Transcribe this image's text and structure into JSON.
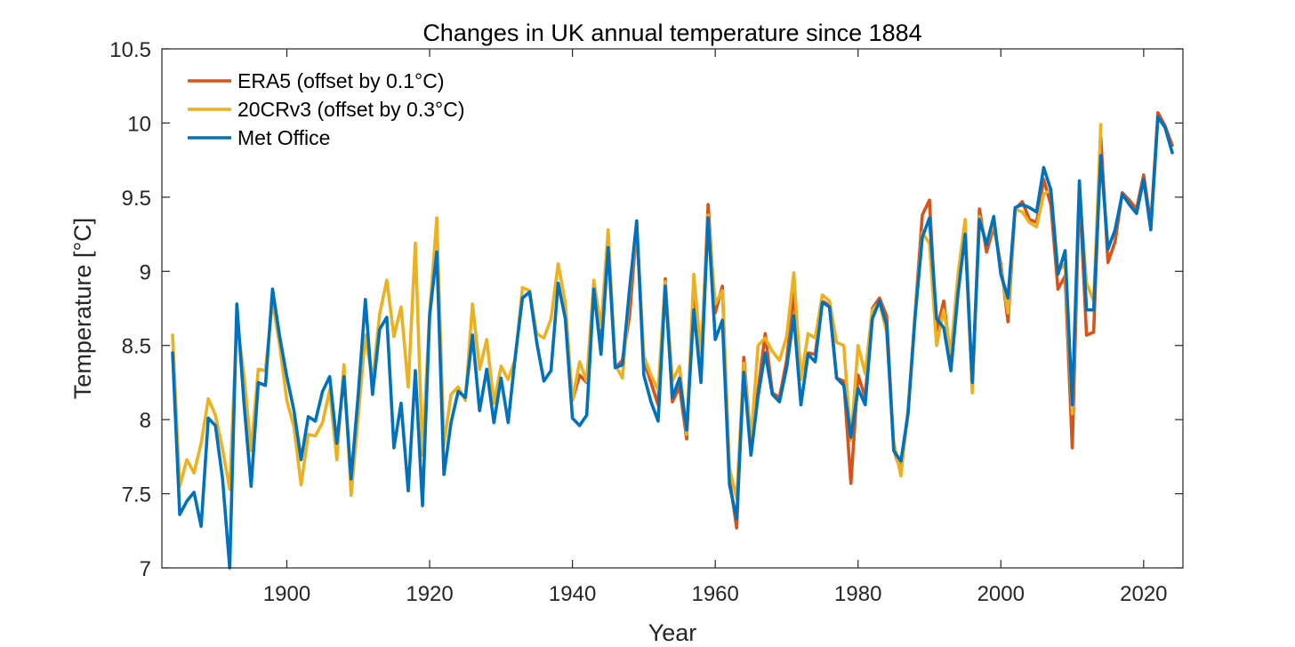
{
  "chart_data": {
    "type": "line",
    "title": "Changes in UK annual temperature since 1884",
    "xlabel": "Year",
    "ylabel": "Temperature [°C]",
    "xlim": [
      1882.5,
      2025.5
    ],
    "ylim": [
      7,
      10.5
    ],
    "xticks": [
      1900,
      1920,
      1940,
      1960,
      1980,
      2000,
      2020
    ],
    "yticks": [
      7,
      7.5,
      8,
      8.5,
      9,
      9.5,
      10,
      10.5
    ],
    "ytick_labels": [
      "7",
      "7.5",
      "8",
      "8.5",
      "9",
      "9.5",
      "10",
      "10.5"
    ],
    "grid": false,
    "legend_position": "top-left",
    "series": [
      {
        "name": "ERA5 (offset by 0.1°C)",
        "color": "#D95319",
        "x": [
          1940,
          1941,
          1942,
          1943,
          1944,
          1945,
          1946,
          1947,
          1948,
          1949,
          1950,
          1951,
          1952,
          1953,
          1954,
          1955,
          1956,
          1957,
          1958,
          1959,
          1960,
          1961,
          1962,
          1963,
          1964,
          1965,
          1966,
          1967,
          1968,
          1969,
          1970,
          1971,
          1972,
          1973,
          1974,
          1975,
          1976,
          1977,
          1978,
          1979,
          1980,
          1981,
          1982,
          1983,
          1984,
          1985,
          1986,
          1987,
          1988,
          1989,
          1990,
          1991,
          1992,
          1993,
          1994,
          1995,
          1996,
          1997,
          1998,
          1999,
          2000,
          2001,
          2002,
          2003,
          2004,
          2005,
          2006,
          2007,
          2008,
          2009,
          2010,
          2011,
          2012,
          2013,
          2014,
          2015,
          2016,
          2017,
          2018,
          2019,
          2020,
          2021,
          2022,
          2023,
          2024
        ],
        "y": [
          8.13,
          8.3,
          8.25,
          8.9,
          8.55,
          9.2,
          8.35,
          8.4,
          8.7,
          9.3,
          8.4,
          8.25,
          8.1,
          8.95,
          8.12,
          8.22,
          7.87,
          8.9,
          8.35,
          9.45,
          8.72,
          8.9,
          7.6,
          7.27,
          8.42,
          7.85,
          8.2,
          8.58,
          8.18,
          8.15,
          8.4,
          8.85,
          8.3,
          8.45,
          8.44,
          8.8,
          8.77,
          8.28,
          8.26,
          7.57,
          8.3,
          8.15,
          8.75,
          8.82,
          8.7,
          7.8,
          7.65,
          8.05,
          8.72,
          9.38,
          9.48,
          8.6,
          8.8,
          8.4,
          8.95,
          9.25,
          8.2,
          9.42,
          9.13,
          9.3,
          9.05,
          8.66,
          9.42,
          9.47,
          9.35,
          9.33,
          9.62,
          9.45,
          8.88,
          8.97,
          7.81,
          9.55,
          8.57,
          8.59,
          9.9,
          9.06,
          9.2,
          9.53,
          9.48,
          9.42,
          9.65,
          9.32,
          10.07,
          9.98,
          9.85
        ]
      },
      {
        "name": "20CRv3 (offset by 0.3°C)",
        "color": "#EDB120",
        "x": [
          1884,
          1885,
          1886,
          1887,
          1888,
          1889,
          1890,
          1891,
          1892,
          1893,
          1894,
          1895,
          1896,
          1897,
          1898,
          1899,
          1900,
          1901,
          1902,
          1903,
          1904,
          1905,
          1906,
          1907,
          1908,
          1909,
          1910,
          1911,
          1912,
          1913,
          1914,
          1915,
          1916,
          1917,
          1918,
          1919,
          1920,
          1921,
          1922,
          1923,
          1924,
          1925,
          1926,
          1927,
          1928,
          1929,
          1930,
          1931,
          1932,
          1933,
          1934,
          1935,
          1936,
          1937,
          1938,
          1939,
          1940,
          1941,
          1942,
          1943,
          1944,
          1945,
          1946,
          1947,
          1948,
          1949,
          1950,
          1951,
          1952,
          1953,
          1954,
          1955,
          1956,
          1957,
          1958,
          1959,
          1960,
          1961,
          1962,
          1963,
          1964,
          1965,
          1966,
          1967,
          1968,
          1969,
          1970,
          1971,
          1972,
          1973,
          1974,
          1975,
          1976,
          1977,
          1978,
          1979,
          1980,
          1981,
          1982,
          1983,
          1984,
          1985,
          1986,
          1987,
          1988,
          1989,
          1990,
          1991,
          1992,
          1993,
          1994,
          1995,
          1996,
          1997,
          1998,
          1999,
          2000,
          2001,
          2002,
          2003,
          2004,
          2005,
          2006,
          2007,
          2008,
          2009,
          2010,
          2011,
          2012,
          2013,
          2014
        ],
        "y": [
          8.57,
          7.55,
          7.73,
          7.64,
          7.84,
          8.14,
          8.03,
          7.8,
          7.53,
          8.67,
          8.3,
          7.79,
          8.34,
          8.33,
          8.8,
          8.5,
          8.13,
          7.95,
          7.56,
          7.9,
          7.89,
          7.98,
          8.2,
          7.73,
          8.37,
          7.49,
          8.02,
          8.57,
          8.26,
          8.71,
          8.94,
          8.56,
          8.76,
          8.22,
          9.19,
          7.76,
          8.72,
          9.36,
          7.83,
          8.17,
          8.22,
          8.13,
          8.78,
          8.34,
          8.54,
          8.11,
          8.36,
          8.27,
          8.41,
          8.89,
          8.87,
          8.58,
          8.55,
          8.68,
          9.05,
          8.79,
          8.13,
          8.39,
          8.26,
          8.94,
          8.62,
          9.28,
          8.37,
          8.28,
          8.86,
          9.3,
          8.43,
          8.3,
          8.2,
          8.93,
          8.26,
          8.36,
          7.9,
          8.98,
          8.43,
          9.38,
          8.78,
          8.87,
          7.67,
          7.47,
          8.38,
          7.86,
          8.5,
          8.55,
          8.46,
          8.4,
          8.56,
          8.99,
          8.27,
          8.58,
          8.55,
          8.84,
          8.8,
          8.52,
          8.5,
          7.86,
          8.5,
          8.31,
          8.74,
          8.79,
          8.59,
          7.85,
          7.62,
          8.07,
          8.72,
          9.26,
          9.19,
          8.5,
          8.74,
          8.45,
          8.98,
          9.35,
          8.18,
          9.37,
          9.18,
          9.33,
          9.02,
          8.72,
          9.42,
          9.4,
          9.33,
          9.3,
          9.52,
          9.55,
          9.0,
          9.05,
          8.04,
          9.55,
          8.92,
          8.8,
          9.99
        ]
      },
      {
        "name": "Met Office",
        "color": "#0072BD",
        "x": [
          1884,
          1885,
          1886,
          1887,
          1888,
          1889,
          1890,
          1891,
          1892,
          1893,
          1894,
          1895,
          1896,
          1897,
          1898,
          1899,
          1900,
          1901,
          1902,
          1903,
          1904,
          1905,
          1906,
          1907,
          1908,
          1909,
          1910,
          1911,
          1912,
          1913,
          1914,
          1915,
          1916,
          1917,
          1918,
          1919,
          1920,
          1921,
          1922,
          1923,
          1924,
          1925,
          1926,
          1927,
          1928,
          1929,
          1930,
          1931,
          1932,
          1933,
          1934,
          1935,
          1936,
          1937,
          1938,
          1939,
          1940,
          1941,
          1942,
          1943,
          1944,
          1945,
          1946,
          1947,
          1948,
          1949,
          1950,
          1951,
          1952,
          1953,
          1954,
          1955,
          1956,
          1957,
          1958,
          1959,
          1960,
          1961,
          1962,
          1963,
          1964,
          1965,
          1966,
          1967,
          1968,
          1969,
          1970,
          1971,
          1972,
          1973,
          1974,
          1975,
          1976,
          1977,
          1978,
          1979,
          1980,
          1981,
          1982,
          1983,
          1984,
          1985,
          1986,
          1987,
          1988,
          1989,
          1990,
          1991,
          1992,
          1993,
          1994,
          1995,
          1996,
          1997,
          1998,
          1999,
          2000,
          2001,
          2002,
          2003,
          2004,
          2005,
          2006,
          2007,
          2008,
          2009,
          2010,
          2011,
          2012,
          2013,
          2014,
          2015,
          2016,
          2017,
          2018,
          2019,
          2020,
          2021,
          2022,
          2023,
          2024
        ],
        "y": [
          8.45,
          7.36,
          7.45,
          7.51,
          7.28,
          8.01,
          7.96,
          7.6,
          7.0,
          8.78,
          8.11,
          7.55,
          8.25,
          8.23,
          8.88,
          8.56,
          8.29,
          8.06,
          7.73,
          8.02,
          7.99,
          8.19,
          8.29,
          7.84,
          8.29,
          7.6,
          8.17,
          8.81,
          8.17,
          8.61,
          8.69,
          7.81,
          8.11,
          7.52,
          8.33,
          7.42,
          8.7,
          9.13,
          7.63,
          7.98,
          8.19,
          8.15,
          8.57,
          8.06,
          8.34,
          7.98,
          8.28,
          7.98,
          8.43,
          8.82,
          8.86,
          8.52,
          8.26,
          8.33,
          8.92,
          8.68,
          8.01,
          7.96,
          8.03,
          8.88,
          8.44,
          9.16,
          8.35,
          8.37,
          8.88,
          9.34,
          8.3,
          8.12,
          7.99,
          8.9,
          8.15,
          8.28,
          7.93,
          8.74,
          8.25,
          9.36,
          8.54,
          8.67,
          7.56,
          7.33,
          8.32,
          7.76,
          8.16,
          8.45,
          8.17,
          8.12,
          8.35,
          8.7,
          8.1,
          8.44,
          8.39,
          8.79,
          8.76,
          8.28,
          8.23,
          7.88,
          8.21,
          8.1,
          8.68,
          8.8,
          8.64,
          7.79,
          7.72,
          8.04,
          8.7,
          9.23,
          9.36,
          8.68,
          8.62,
          8.33,
          8.85,
          9.25,
          8.25,
          9.35,
          9.18,
          9.37,
          8.98,
          8.82,
          9.43,
          9.45,
          9.43,
          9.4,
          9.7,
          9.55,
          8.98,
          9.14,
          8.1,
          9.61,
          8.74,
          8.74,
          9.78,
          9.15,
          9.28,
          9.52,
          9.45,
          9.39,
          9.62,
          9.28,
          10.04,
          9.97,
          9.8
        ]
      }
    ]
  }
}
